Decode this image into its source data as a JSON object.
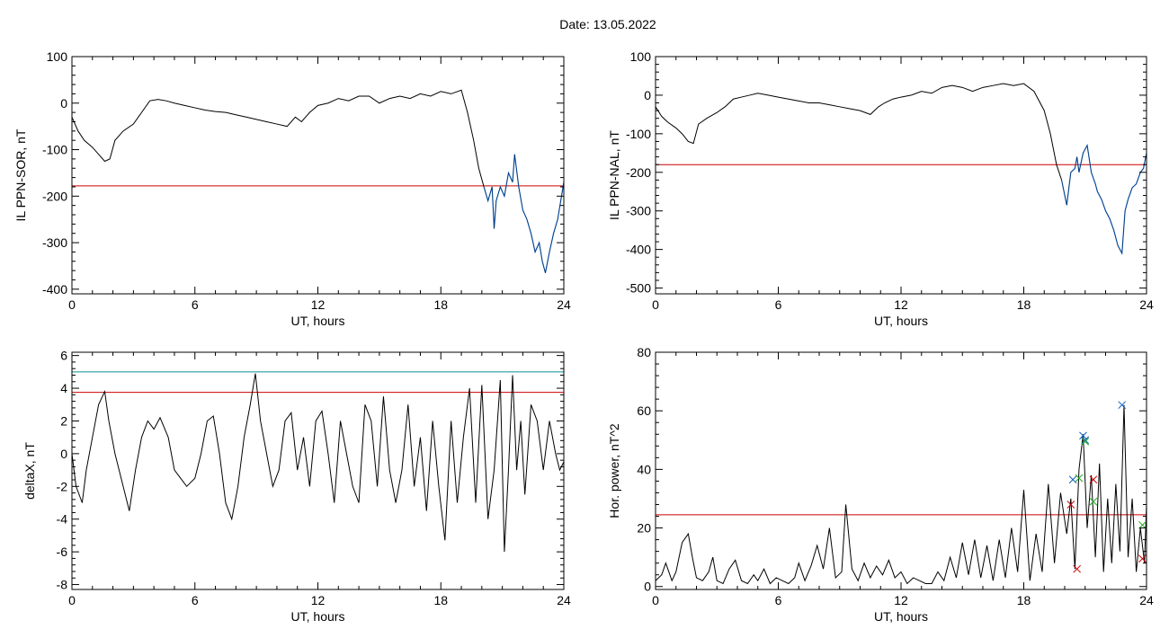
{
  "figure": {
    "date_label": "Date:  13.05.2022"
  },
  "colors": {
    "trace": "#000000",
    "threshold": "#cc0000",
    "highlight": "#1060c0",
    "teal_line": "#0a8f8f",
    "green_marker": "#22aa22"
  },
  "chart_data": [
    {
      "id": "sor",
      "type": "line",
      "xlabel": "UT, hours",
      "ylabel": "IL PPN-SOR, nT",
      "xlim": [
        0,
        24
      ],
      "ylim": [
        -410,
        100
      ],
      "xticks": [
        0,
        6,
        12,
        18,
        24
      ],
      "yticks": [
        100,
        0,
        -100,
        -200,
        -300,
        -400
      ],
      "threshold": -178,
      "grid": false,
      "series": [
        {
          "x": [
            0,
            0.3,
            0.6,
            1,
            1.3,
            1.6,
            1.85,
            2.1,
            2.5,
            3,
            3.4,
            3.8,
            4.2,
            4.6,
            5,
            5.5,
            6,
            6.5,
            7,
            7.5,
            8,
            8.5,
            9,
            9.5,
            10,
            10.5,
            10.9,
            11.2,
            11.6,
            12,
            12.5,
            13,
            13.5,
            14,
            14.5,
            15,
            15.5,
            16,
            16.5,
            17,
            17.5,
            18,
            18.5,
            19,
            19.3,
            19.6,
            19.85,
            20.1,
            20.3,
            20.5,
            20.6,
            20.7,
            20.9,
            21.1,
            21.3,
            21.5,
            21.6,
            21.8,
            22,
            22.2,
            22.4,
            22.6,
            22.8,
            22.95,
            23.1,
            23.3,
            23.5,
            23.7,
            23.85,
            24
          ],
          "y": [
            -30,
            -60,
            -80,
            -95,
            -110,
            -125,
            -120,
            -80,
            -60,
            -45,
            -20,
            5,
            8,
            5,
            0,
            -5,
            -10,
            -15,
            -18,
            -20,
            -25,
            -30,
            -35,
            -40,
            -45,
            -50,
            -30,
            -40,
            -20,
            -5,
            0,
            10,
            5,
            15,
            15,
            0,
            10,
            15,
            10,
            20,
            15,
            25,
            20,
            28,
            -20,
            -80,
            -140,
            -180,
            -210,
            -180,
            -270,
            -210,
            -180,
            -200,
            -150,
            -170,
            -110,
            -180,
            -230,
            -250,
            -280,
            -320,
            -300,
            -340,
            -365,
            -320,
            -280,
            -250,
            -210,
            -170
          ]
        }
      ],
      "highlight_from_x": 20.2
    },
    {
      "id": "nal",
      "type": "line",
      "xlabel": "UT, hours",
      "ylabel": "IL PPN-NAL, nT",
      "xlim": [
        0,
        24
      ],
      "ylim": [
        -515,
        100
      ],
      "xticks": [
        0,
        6,
        12,
        18,
        24
      ],
      "yticks": [
        100,
        0,
        -100,
        -200,
        -300,
        -400,
        -500
      ],
      "threshold": -180,
      "grid": false,
      "series": [
        {
          "x": [
            0,
            0.3,
            0.6,
            1,
            1.3,
            1.6,
            1.85,
            2.1,
            2.5,
            3,
            3.4,
            3.8,
            4.2,
            4.6,
            5,
            5.5,
            6,
            6.5,
            7,
            7.5,
            8,
            8.5,
            9,
            9.5,
            10,
            10.5,
            10.9,
            11.2,
            11.6,
            12,
            12.5,
            13,
            13.5,
            14,
            14.5,
            15,
            15.5,
            16,
            16.5,
            17,
            17.5,
            18,
            18.5,
            19,
            19.3,
            19.6,
            19.85,
            20.1,
            20.3,
            20.5,
            20.6,
            20.7,
            20.9,
            21.1,
            21.3,
            21.5,
            21.6,
            21.8,
            22,
            22.2,
            22.4,
            22.6,
            22.8,
            22.95,
            23.1,
            23.3,
            23.5,
            23.7,
            23.85,
            24
          ],
          "y": [
            -30,
            -55,
            -70,
            -85,
            -100,
            -120,
            -125,
            -75,
            -60,
            -45,
            -30,
            -10,
            -5,
            0,
            5,
            0,
            -5,
            -10,
            -15,
            -20,
            -20,
            -25,
            -30,
            -35,
            -40,
            -50,
            -30,
            -20,
            -10,
            -5,
            0,
            10,
            5,
            20,
            25,
            20,
            10,
            20,
            25,
            30,
            25,
            30,
            10,
            -40,
            -100,
            -180,
            -220,
            -285,
            -200,
            -190,
            -160,
            -200,
            -150,
            -130,
            -200,
            -230,
            -250,
            -270,
            -300,
            -320,
            -350,
            -390,
            -410,
            -300,
            -270,
            -240,
            -230,
            -200,
            -190,
            -150
          ]
        }
      ],
      "highlight_from_x": 19.95
    },
    {
      "id": "deltax",
      "type": "line",
      "xlabel": "UT, hours",
      "ylabel": "deltaX, nT",
      "xlim": [
        0,
        24
      ],
      "ylim": [
        -8.3,
        6.2
      ],
      "xticks": [
        0,
        6,
        12,
        18,
        24
      ],
      "yticks": [
        6,
        4,
        2,
        0,
        -2,
        -4,
        -6,
        -8
      ],
      "threshold": 3.75,
      "threshold_upper": 5.0,
      "grid": false,
      "series": [
        {
          "x": [
            0,
            0.2,
            0.5,
            0.7,
            1,
            1.3,
            1.6,
            1.8,
            2.1,
            2.5,
            2.8,
            3.1,
            3.4,
            3.7,
            4,
            4.3,
            4.7,
            5,
            5.3,
            5.6,
            6,
            6.3,
            6.6,
            6.9,
            7.2,
            7.5,
            7.8,
            8.1,
            8.4,
            8.7,
            8.95,
            9.2,
            9.5,
            9.8,
            10.1,
            10.4,
            10.7,
            11,
            11.3,
            11.6,
            11.9,
            12.2,
            12.5,
            12.8,
            13.1,
            13.4,
            13.7,
            14,
            14.3,
            14.6,
            14.9,
            15.2,
            15.5,
            15.8,
            16.1,
            16.4,
            16.7,
            17,
            17.3,
            17.6,
            17.9,
            18.2,
            18.5,
            18.8,
            19.1,
            19.4,
            19.7,
            20,
            20.3,
            20.6,
            20.9,
            21.1,
            21.3,
            21.5,
            21.7,
            21.9,
            22.1,
            22.4,
            22.7,
            23,
            23.3,
            23.6,
            23.8,
            24
          ],
          "y": [
            0,
            -2,
            -3,
            -1,
            1,
            3,
            3.8,
            2,
            0,
            -2,
            -3.5,
            -1,
            1,
            2,
            1.5,
            2.2,
            1,
            -1,
            -1.5,
            -2,
            -1.5,
            0,
            2,
            2.3,
            0,
            -3,
            -4,
            -2,
            1,
            3,
            4.9,
            2,
            0,
            -2,
            -1,
            2,
            2.5,
            -1,
            1,
            -2,
            2,
            2.6,
            0,
            -3,
            2,
            0,
            -2,
            -3,
            3,
            2,
            -2,
            3.5,
            -1,
            -3,
            -1,
            3,
            -2,
            1,
            -3.5,
            2,
            -2,
            -5.3,
            2,
            -3,
            1,
            4,
            -3,
            4.2,
            -4,
            -1,
            4.5,
            -6,
            -1,
            4.8,
            -1,
            2,
            -2.5,
            3,
            2,
            -1,
            2,
            0,
            -1,
            -0.5
          ]
        }
      ]
    },
    {
      "id": "power",
      "type": "line",
      "xlabel": "UT, hours",
      "ylabel": "Hor. power, nT^2",
      "xlim": [
        0,
        24
      ],
      "ylim": [
        -1,
        80
      ],
      "xticks": [
        0,
        6,
        12,
        18,
        24
      ],
      "yticks": [
        80,
        60,
        40,
        20,
        0
      ],
      "threshold": 24.5,
      "grid": false,
      "series": [
        {
          "x": [
            0,
            0.3,
            0.5,
            0.8,
            1,
            1.3,
            1.6,
            1.8,
            2,
            2.3,
            2.6,
            2.8,
            3,
            3.3,
            3.6,
            3.9,
            4.2,
            4.5,
            4.8,
            5,
            5.3,
            5.6,
            5.9,
            6.2,
            6.5,
            6.8,
            7,
            7.3,
            7.6,
            7.9,
            8.2,
            8.5,
            8.8,
            9.1,
            9.3,
            9.6,
            9.9,
            10.2,
            10.5,
            10.8,
            11.1,
            11.4,
            11.7,
            12,
            12.3,
            12.6,
            12.9,
            13.2,
            13.5,
            13.8,
            14.1,
            14.4,
            14.7,
            15,
            15.3,
            15.6,
            15.9,
            16.2,
            16.5,
            16.8,
            17.1,
            17.4,
            17.7,
            18,
            18.3,
            18.6,
            18.9,
            19.2,
            19.5,
            19.8,
            20.1,
            20.3,
            20.5,
            20.7,
            20.9,
            21.1,
            21.3,
            21.5,
            21.7,
            21.9,
            22.1,
            22.3,
            22.5,
            22.7,
            22.9,
            23.1,
            23.3,
            23.5,
            23.7,
            23.9,
            24
          ],
          "y": [
            2,
            4,
            8,
            2,
            5,
            15,
            18,
            10,
            3,
            2,
            5,
            10,
            2,
            1,
            6,
            9,
            2,
            1,
            4,
            2,
            6,
            1,
            3,
            2,
            1,
            3,
            8,
            2,
            7,
            14,
            6,
            20,
            3,
            5,
            28,
            6,
            2,
            8,
            3,
            7,
            4,
            9,
            3,
            5,
            1,
            3,
            2,
            1,
            1,
            5,
            2,
            10,
            3,
            15,
            4,
            16,
            3,
            14,
            2,
            16,
            3,
            20,
            5,
            33,
            2,
            18,
            5,
            35,
            8,
            32,
            18,
            30,
            6,
            40,
            52,
            20,
            38,
            10,
            42,
            5,
            30,
            8,
            35,
            12,
            62,
            10,
            30,
            5,
            20,
            8,
            28
          ]
        }
      ],
      "markers_blue": [
        [
          20.4,
          36.5
        ],
        [
          20.9,
          51.5
        ],
        [
          21,
          50
        ],
        [
          22.8,
          62
        ]
      ],
      "markers_red": [
        [
          20.3,
          28
        ],
        [
          20.6,
          6
        ],
        [
          21.4,
          36.5
        ],
        [
          23.8,
          9.5
        ]
      ],
      "markers_green": [
        [
          20.7,
          37
        ],
        [
          21,
          49.5
        ],
        [
          21.4,
          29
        ],
        [
          23.8,
          21
        ]
      ]
    }
  ]
}
